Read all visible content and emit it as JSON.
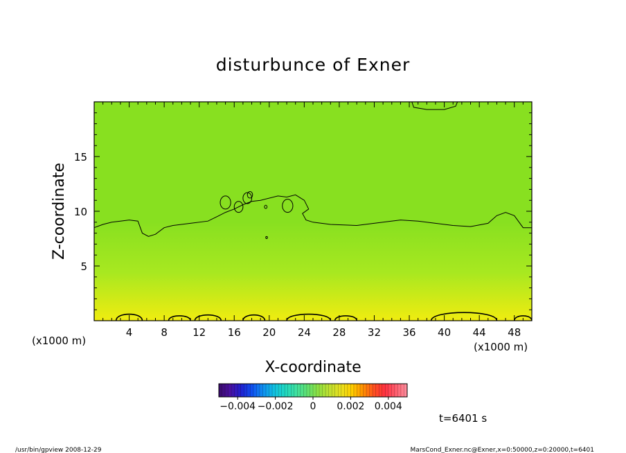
{
  "chart_data": {
    "type": "heatmap",
    "title": "disturbunce of Exner",
    "xlabel": "X-coordinate",
    "ylabel": "Z-coordinate",
    "x_unit_left": "(x1000 m)",
    "x_unit_right": "(x1000 m)",
    "xlim": [
      0,
      50
    ],
    "ylim": [
      0,
      20
    ],
    "x_ticks": [
      4,
      8,
      12,
      16,
      20,
      24,
      28,
      32,
      36,
      40,
      44,
      48
    ],
    "y_ticks": [
      5,
      10,
      15
    ],
    "time_label": "t=6401 s",
    "colorbar": {
      "min": -0.005,
      "max": 0.005,
      "tick_values": [
        -0.004,
        -0.002,
        0,
        0.002,
        0.004
      ],
      "tick_labels": [
        "−0.004",
        "−0.002",
        "0",
        "0.002",
        "0.004"
      ],
      "colors": [
        "#3a0a6a",
        "#4a10a0",
        "#2020d0",
        "#1050f0",
        "#1090f0",
        "#10c0e0",
        "#20d8c0",
        "#40e0a0",
        "#60e070",
        "#90e040",
        "#c0e030",
        "#e8e020",
        "#ffd000",
        "#ff9000",
        "#ff5020",
        "#ff3040",
        "#ff6070",
        "#ff90a0"
      ]
    },
    "field_colors": {
      "low": "#88e020",
      "mid": "#a8e820",
      "high": "#f0ec10"
    },
    "zero_contour": [
      [
        0,
        8.5
      ],
      [
        1,
        8.8
      ],
      [
        2,
        9.0
      ],
      [
        3,
        9.1
      ],
      [
        4,
        9.2
      ],
      [
        5,
        9.1
      ],
      [
        5.5,
        8.0
      ],
      [
        6.2,
        7.7
      ],
      [
        7,
        7.9
      ],
      [
        8,
        8.5
      ],
      [
        9,
        8.7
      ],
      [
        11,
        8.9
      ],
      [
        13,
        9.1
      ],
      [
        14,
        9.5
      ],
      [
        15,
        9.9
      ],
      [
        16,
        10.2
      ],
      [
        17,
        10.6
      ],
      [
        18,
        10.9
      ],
      [
        19,
        11.0
      ],
      [
        21,
        11.4
      ],
      [
        22,
        11.3
      ],
      [
        23,
        11.5
      ],
      [
        24,
        11.0
      ],
      [
        24.5,
        10.2
      ],
      [
        23.8,
        9.8
      ],
      [
        24.2,
        9.2
      ],
      [
        25,
        9.0
      ],
      [
        27,
        8.8
      ],
      [
        30,
        8.7
      ],
      [
        33,
        9.0
      ],
      [
        35,
        9.2
      ],
      [
        37,
        9.1
      ],
      [
        39,
        8.9
      ],
      [
        41,
        8.7
      ],
      [
        43,
        8.6
      ],
      [
        45,
        8.9
      ],
      [
        46,
        9.6
      ],
      [
        47,
        9.9
      ],
      [
        48,
        9.6
      ],
      [
        49,
        8.5
      ],
      [
        50,
        8.5
      ]
    ],
    "top_contour": [
      [
        36.3,
        20
      ],
      [
        36.5,
        19.5
      ],
      [
        38,
        19.3
      ],
      [
        40,
        19.3
      ],
      [
        41.3,
        19.6
      ],
      [
        41.5,
        20
      ]
    ],
    "bottom_humps": [
      [
        2.5,
        5.5,
        0.8
      ],
      [
        8.5,
        11,
        0.6
      ],
      [
        11.5,
        14.5,
        0.7
      ],
      [
        17,
        19.5,
        0.7
      ],
      [
        22,
        27,
        0.8
      ],
      [
        27.5,
        30,
        0.6
      ],
      [
        38.5,
        46,
        1.0
      ],
      [
        48,
        50,
        0.6
      ]
    ],
    "small_loops": [
      [
        15,
        10.8,
        0.6
      ],
      [
        16.5,
        10.4,
        0.5
      ],
      [
        17.5,
        11.2,
        0.5
      ],
      [
        22.1,
        10.5,
        0.6
      ],
      [
        19.6,
        10.4,
        0.15
      ],
      [
        17.8,
        11.5,
        0.3
      ],
      [
        19.7,
        7.6,
        0.1
      ]
    ]
  },
  "footer": {
    "left": "/usr/bin/gpview   2008-12-29",
    "right": "MarsCond_Exner.nc@Exner,x=0:50000,z=0:20000,t=6401"
  }
}
